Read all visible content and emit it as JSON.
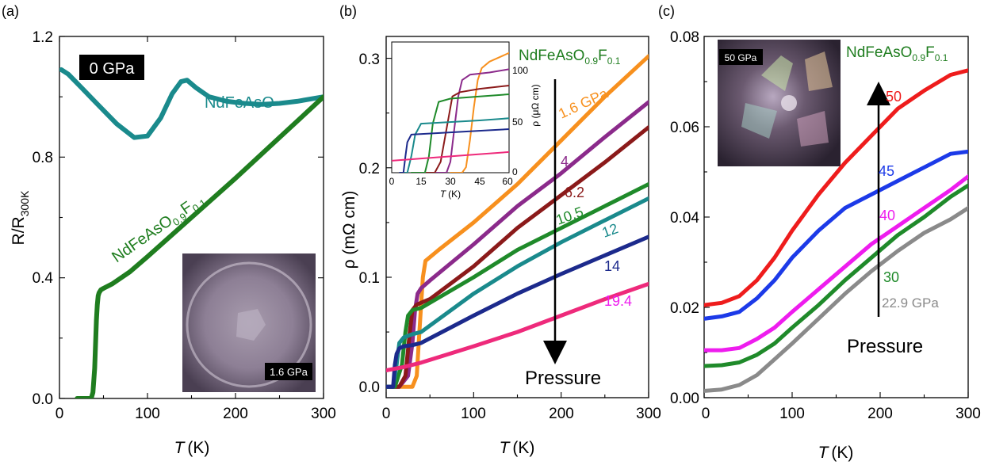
{
  "chart_data": [
    {
      "panel": "(a)",
      "type": "line",
      "xlabel_italic": "T",
      "xlabel_unit": "(K)",
      "ylabel": "R/R",
      "ylabel_sub": "300K",
      "xlim": [
        0,
        300
      ],
      "ylim": [
        0,
        1.2
      ],
      "xticks": [
        "0",
        "100",
        "200",
        "300"
      ],
      "yticks": [
        "0.0",
        "0.4",
        "0.8",
        "1.2"
      ],
      "pressure_box": "0 GPa",
      "photo_label": "1.6 GPa",
      "series": [
        {
          "name": "NdFeAsO",
          "color": "#1a8a8c",
          "x": [
            2,
            10,
            25,
            45,
            65,
            85,
            100,
            115,
            128,
            138,
            145,
            155,
            170,
            190,
            210,
            230,
            250,
            270,
            290,
            300
          ],
          "y": [
            1.09,
            1.075,
            1.03,
            0.97,
            0.91,
            0.865,
            0.87,
            0.93,
            1.01,
            1.05,
            1.055,
            1.03,
            1.0,
            0.985,
            0.978,
            0.975,
            0.978,
            0.985,
            0.995,
            1.0
          ]
        },
        {
          "name": "NdFeAsO0.9F0.1",
          "label_main": "NdFeAsO",
          "label_sub1": "0.9",
          "label_mid": "F",
          "label_sub2": "0.1",
          "color": "#1f7d1f",
          "x": [
            20,
            30,
            36,
            38,
            40,
            41,
            42,
            43,
            44,
            45,
            47,
            50,
            60,
            80,
            100,
            150,
            200,
            250,
            300
          ],
          "y": [
            0.0,
            0.0,
            0.0,
            0.02,
            0.1,
            0.18,
            0.26,
            0.31,
            0.34,
            0.35,
            0.36,
            0.365,
            0.38,
            0.42,
            0.47,
            0.6,
            0.73,
            0.865,
            1.0
          ]
        }
      ]
    },
    {
      "panel": "(b)",
      "type": "line",
      "xlabel_italic": "T",
      "xlabel_unit": "(K)",
      "ylabel": "ρ (mΩ cm)",
      "xlim": [
        0,
        300
      ],
      "ylim": [
        -0.01,
        0.32
      ],
      "xticks": [
        "0",
        "100",
        "200",
        "300"
      ],
      "yticks": [
        "0.0",
        "0.1",
        "0.2",
        "0.3"
      ],
      "compound_main": "NdFeAsO",
      "compound_sub1": "0.9",
      "compound_mid": "F",
      "compound_sub2": "0.1",
      "arrow_label": "Pressure",
      "series": [
        {
          "name": "1.6 GPa",
          "color": "#f7901e",
          "x": [
            0,
            20,
            30,
            35,
            38,
            42,
            45,
            60,
            100,
            150,
            200,
            250,
            300
          ],
          "y": [
            0.0,
            0.0,
            0.0,
            0.01,
            0.05,
            0.1,
            0.115,
            0.125,
            0.15,
            0.185,
            0.225,
            0.265,
            0.302
          ]
        },
        {
          "name": "4",
          "color": "#8b2a8b",
          "x": [
            0,
            15,
            25,
            30,
            33,
            36,
            40,
            50,
            100,
            150,
            200,
            250,
            300
          ],
          "y": [
            0.0,
            0.0,
            0.01,
            0.04,
            0.07,
            0.085,
            0.09,
            0.097,
            0.13,
            0.165,
            0.195,
            0.228,
            0.26
          ]
        },
        {
          "name": "6.2",
          "color": "#8b1a1a",
          "x": [
            0,
            15,
            22,
            27,
            30,
            35,
            50,
            100,
            150,
            200,
            250,
            300
          ],
          "y": [
            0.0,
            0.0,
            0.01,
            0.05,
            0.07,
            0.075,
            0.08,
            0.11,
            0.145,
            0.175,
            0.205,
            0.237
          ]
        },
        {
          "name": "10.5",
          "color": "#1f8a2a",
          "x": [
            0,
            10,
            18,
            22,
            25,
            30,
            40,
            100,
            150,
            200,
            250,
            300
          ],
          "y": [
            0.0,
            0.0,
            0.02,
            0.05,
            0.065,
            0.07,
            0.072,
            0.1,
            0.125,
            0.145,
            0.165,
            0.185
          ]
        },
        {
          "name": "12",
          "color": "#1a8a8c",
          "x": [
            0,
            8,
            12,
            15,
            20,
            30,
            40,
            100,
            150,
            200,
            250,
            300
          ],
          "y": [
            0.0,
            0.0,
            0.02,
            0.04,
            0.045,
            0.048,
            0.05,
            0.085,
            0.11,
            0.132,
            0.152,
            0.172
          ]
        },
        {
          "name": "14",
          "color": "#1c2a8c",
          "x": [
            0,
            8,
            10,
            12,
            15,
            20,
            30,
            40,
            100,
            150,
            200,
            250,
            300
          ],
          "y": [
            0.0,
            0.0,
            0.02,
            0.03,
            0.035,
            0.037,
            0.038,
            0.04,
            0.065,
            0.085,
            0.103,
            0.12,
            0.137
          ]
        },
        {
          "name": "19.4",
          "color": "#ee2a7b",
          "x": [
            0,
            20,
            40,
            60,
            80,
            100,
            150,
            200,
            250,
            300
          ],
          "y": [
            0.015,
            0.018,
            0.022,
            0.027,
            0.032,
            0.037,
            0.05,
            0.065,
            0.08,
            0.094
          ]
        }
      ],
      "inset": {
        "xlabel_italic": "T",
        "xlabel_unit": "(K)",
        "ylabel": "ρ (μΩ cm)",
        "xlim": [
          0,
          60
        ],
        "ylim": [
          0,
          120
        ],
        "xticks": [
          "0",
          "15",
          "30",
          "45",
          "60"
        ],
        "yticks": [
          "0",
          "50",
          "100"
        ],
        "series": [
          {
            "color": "#f7901e",
            "x": [
              30,
              36,
              38,
              40,
              42,
              44,
              46,
              50,
              55,
              60
            ],
            "y": [
              0,
              0,
              5,
              30,
              60,
              85,
              96,
              102,
              106,
              110
            ]
          },
          {
            "color": "#8b2a8b",
            "x": [
              20,
              28,
              30,
              32,
              34,
              36,
              40,
              50,
              60
            ],
            "y": [
              0,
              0,
              10,
              40,
              70,
              85,
              90,
              92,
              95
            ]
          },
          {
            "color": "#8b1a1a",
            "x": [
              15,
              22,
              25,
              28,
              31,
              35,
              45,
              60
            ],
            "y": [
              0,
              0,
              10,
              40,
              70,
              74,
              77,
              80
            ]
          },
          {
            "color": "#1f8a2a",
            "x": [
              10,
              17,
              19,
              21,
              24,
              30,
              45,
              60
            ],
            "y": [
              0,
              0,
              15,
              45,
              65,
              68,
              70,
              72
            ]
          },
          {
            "color": "#1a8a8c",
            "x": [
              5,
              8,
              10,
              12,
              15,
              25,
              45,
              60
            ],
            "y": [
              0,
              0,
              15,
              35,
              45,
              46,
              48,
              50
            ]
          },
          {
            "color": "#1c2a8c",
            "x": [
              4,
              6,
              7,
              8,
              10,
              20,
              40,
              60
            ],
            "y": [
              0,
              0,
              15,
              28,
              35,
              36,
              38,
              40
            ]
          },
          {
            "color": "#ee2a7b",
            "x": [
              0,
              15,
              30,
              45,
              60
            ],
            "y": [
              11,
              13,
              15,
              17,
              19
            ]
          }
        ]
      }
    },
    {
      "panel": "(c)",
      "type": "line",
      "xlabel_italic": "T",
      "xlabel_unit": "(K)",
      "ylabel": "",
      "xlim": [
        0,
        300
      ],
      "ylim": [
        0,
        0.08
      ],
      "xticks": [
        "0",
        "100",
        "200",
        "300"
      ],
      "yticks": [
        "0.00",
        "0.02",
        "0.04",
        "0.06",
        "0.08"
      ],
      "compound_main": "NdFeAsO",
      "compound_sub1": "0.9",
      "compound_mid": "F",
      "compound_sub2": "0.1",
      "arrow_label": "Pressure",
      "photo_label": "50 GPa",
      "series": [
        {
          "name": "50",
          "color": "#ee1c1c",
          "x": [
            0,
            20,
            40,
            60,
            80,
            100,
            130,
            160,
            190,
            220,
            250,
            280,
            300
          ],
          "y": [
            0.0205,
            0.021,
            0.0225,
            0.026,
            0.031,
            0.037,
            0.045,
            0.052,
            0.058,
            0.064,
            0.068,
            0.0715,
            0.0725
          ]
        },
        {
          "name": "45",
          "color": "#1c3ae8",
          "x": [
            0,
            20,
            40,
            60,
            80,
            100,
            130,
            160,
            190,
            220,
            250,
            280,
            300
          ],
          "y": [
            0.0175,
            0.018,
            0.019,
            0.022,
            0.026,
            0.031,
            0.037,
            0.042,
            0.045,
            0.048,
            0.051,
            0.054,
            0.0545
          ]
        },
        {
          "name": "40",
          "color": "#ee1cee",
          "x": [
            0,
            20,
            40,
            60,
            80,
            100,
            130,
            160,
            190,
            220,
            250,
            280,
            300
          ],
          "y": [
            0.0105,
            0.0105,
            0.011,
            0.013,
            0.0155,
            0.019,
            0.024,
            0.029,
            0.034,
            0.038,
            0.042,
            0.046,
            0.049
          ]
        },
        {
          "name": "30",
          "color": "#1f8a2a",
          "x": [
            0,
            20,
            40,
            60,
            80,
            100,
            130,
            160,
            190,
            220,
            250,
            280,
            300
          ],
          "y": [
            0.007,
            0.0072,
            0.0078,
            0.0095,
            0.012,
            0.0155,
            0.0205,
            0.026,
            0.031,
            0.036,
            0.04,
            0.0445,
            0.047
          ]
        },
        {
          "name": "22.9 GPa",
          "color": "#8a8a8a",
          "x": [
            0,
            20,
            40,
            60,
            80,
            100,
            130,
            160,
            190,
            220,
            250,
            280,
            300
          ],
          "y": [
            0.0015,
            0.0018,
            0.0028,
            0.005,
            0.0085,
            0.012,
            0.0175,
            0.023,
            0.028,
            0.0325,
            0.0365,
            0.0395,
            0.042
          ]
        }
      ]
    }
  ]
}
